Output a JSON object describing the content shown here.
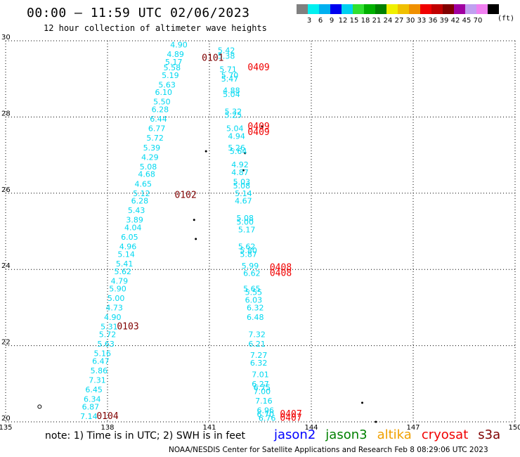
{
  "header": {
    "title": "00:00 — 11:59 UTC 02/06/2023",
    "subtitle": "12 hour collection of altimeter wave heights"
  },
  "colorbar": {
    "colors": [
      "#808080",
      "#00f0f0",
      "#00b0f0",
      "#0000f0",
      "#00d0f0",
      "#30e030",
      "#00b000",
      "#008000",
      "#f0f000",
      "#f0c000",
      "#f09000",
      "#f00000",
      "#c00000",
      "#800000",
      "#a000a0",
      "#c0a0f0",
      "#f080f0",
      "#000000"
    ],
    "labels": [
      "3",
      "6",
      "9",
      "12",
      "15",
      "18",
      "21",
      "24",
      "27",
      "30",
      "33",
      "36",
      "39",
      "42",
      "45",
      "70"
    ],
    "units": "(ft)"
  },
  "chart_data": {
    "type": "scatter",
    "title": "00:00 — 11:59 UTC 02/06/2023",
    "subtitle": "12 hour collection of altimeter wave heights",
    "xlim": [
      135,
      150
    ],
    "ylim": [
      20,
      30
    ],
    "x_ticks": [
      "135",
      "138",
      "141",
      "144",
      "147",
      "150"
    ],
    "y_ticks": [
      "20",
      "22",
      "24",
      "26",
      "28",
      "30"
    ],
    "grid": true,
    "legend_position": "bottom",
    "series": [
      {
        "name": "jason2",
        "color": "#00d8f0",
        "points": [
          {
            "x": 140.1,
            "y": 29.9,
            "label": "4.90"
          },
          {
            "x": 140.0,
            "y": 29.65,
            "label": "4.89"
          },
          {
            "x": 139.95,
            "y": 29.45,
            "label": "5.17"
          },
          {
            "x": 139.9,
            "y": 29.3,
            "label": "5.58"
          },
          {
            "x": 139.85,
            "y": 29.1,
            "label": "5.19"
          },
          {
            "x": 139.75,
            "y": 28.85,
            "label": "5.63"
          },
          {
            "x": 139.65,
            "y": 28.65,
            "label": "6.10"
          },
          {
            "x": 139.6,
            "y": 28.4,
            "label": "5.50"
          },
          {
            "x": 139.55,
            "y": 28.2,
            "label": "6.28"
          },
          {
            "x": 139.5,
            "y": 27.95,
            "label": "6.44"
          },
          {
            "x": 139.45,
            "y": 27.7,
            "label": "6.77"
          },
          {
            "x": 139.4,
            "y": 27.45,
            "label": "5.72"
          },
          {
            "x": 139.3,
            "y": 27.2,
            "label": "5.39"
          },
          {
            "x": 139.25,
            "y": 26.95,
            "label": "4.29"
          },
          {
            "x": 139.2,
            "y": 26.7,
            "label": "5.08"
          },
          {
            "x": 139.15,
            "y": 26.5,
            "label": "4.68"
          },
          {
            "x": 139.05,
            "y": 26.25,
            "label": "4.65"
          },
          {
            "x": 139.0,
            "y": 26.0,
            "label": "5.12"
          },
          {
            "x": 138.95,
            "y": 25.8,
            "label": "6.28"
          },
          {
            "x": 138.85,
            "y": 25.55,
            "label": "5.43"
          },
          {
            "x": 138.8,
            "y": 25.3,
            "label": "3.89"
          },
          {
            "x": 138.75,
            "y": 25.1,
            "label": "4.04"
          },
          {
            "x": 138.65,
            "y": 24.85,
            "label": "6.05"
          },
          {
            "x": 138.6,
            "y": 24.6,
            "label": "4.96"
          },
          {
            "x": 138.55,
            "y": 24.4,
            "label": "5.14"
          },
          {
            "x": 138.5,
            "y": 24.15,
            "label": "5.41"
          },
          {
            "x": 138.45,
            "y": 23.95,
            "label": "5.62"
          },
          {
            "x": 138.35,
            "y": 23.7,
            "label": "4.79"
          },
          {
            "x": 138.3,
            "y": 23.5,
            "label": "5.90"
          },
          {
            "x": 138.25,
            "y": 23.25,
            "label": "5.00"
          },
          {
            "x": 138.2,
            "y": 23.0,
            "label": "4.73"
          },
          {
            "x": 138.15,
            "y": 22.75,
            "label": "4.90"
          },
          {
            "x": 138.05,
            "y": 22.5,
            "label": "5.31"
          },
          {
            "x": 138.0,
            "y": 22.3,
            "label": "5.72"
          },
          {
            "x": 137.95,
            "y": 22.05,
            "label": "5.63"
          },
          {
            "x": 137.85,
            "y": 21.8,
            "label": "5.16"
          },
          {
            "x": 137.8,
            "y": 21.6,
            "label": "6.47"
          },
          {
            "x": 137.75,
            "y": 21.35,
            "label": "5.86"
          },
          {
            "x": 137.7,
            "y": 21.1,
            "label": "7.31"
          },
          {
            "x": 137.6,
            "y": 20.85,
            "label": "6.45"
          },
          {
            "x": 137.55,
            "y": 20.6,
            "label": "6.34"
          },
          {
            "x": 137.5,
            "y": 20.4,
            "label": "6.87"
          },
          {
            "x": 137.45,
            "y": 20.15,
            "label": "7.14"
          }
        ]
      },
      {
        "name": "jason2",
        "color": "#00d8f0",
        "points": [
          {
            "x": 141.5,
            "y": 29.75,
            "label": "5.42"
          },
          {
            "x": 141.5,
            "y": 29.6,
            "label": "5.38"
          },
          {
            "x": 141.55,
            "y": 29.25,
            "label": "5.71"
          },
          {
            "x": 141.6,
            "y": 29.1,
            "label": "5.70"
          },
          {
            "x": 141.6,
            "y": 29.0,
            "label": "5.47"
          },
          {
            "x": 141.65,
            "y": 28.7,
            "label": "4.88"
          },
          {
            "x": 141.65,
            "y": 28.6,
            "label": "5.04"
          },
          {
            "x": 141.7,
            "y": 28.15,
            "label": "5.32"
          },
          {
            "x": 141.7,
            "y": 28.05,
            "label": "5.25"
          },
          {
            "x": 141.75,
            "y": 27.7,
            "label": "5.04"
          },
          {
            "x": 141.8,
            "y": 27.5,
            "label": "4.94"
          },
          {
            "x": 141.8,
            "y": 27.2,
            "label": "5.26"
          },
          {
            "x": 141.85,
            "y": 27.1,
            "label": "5.64"
          },
          {
            "x": 141.9,
            "y": 26.75,
            "label": "4.92"
          },
          {
            "x": 141.9,
            "y": 26.55,
            "label": "4.87"
          },
          {
            "x": 141.95,
            "y": 26.3,
            "label": "5.03"
          },
          {
            "x": 141.95,
            "y": 26.2,
            "label": "5.08"
          },
          {
            "x": 142.0,
            "y": 26.0,
            "label": "5.14"
          },
          {
            "x": 142.0,
            "y": 25.8,
            "label": "4.67"
          },
          {
            "x": 142.05,
            "y": 25.35,
            "label": "5.08"
          },
          {
            "x": 142.05,
            "y": 25.25,
            "label": "5.00"
          },
          {
            "x": 142.1,
            "y": 25.05,
            "label": "5.17"
          },
          {
            "x": 142.1,
            "y": 24.6,
            "label": "5.62"
          },
          {
            "x": 142.15,
            "y": 24.5,
            "label": "5.80"
          },
          {
            "x": 142.15,
            "y": 24.4,
            "label": "5.87"
          },
          {
            "x": 142.2,
            "y": 24.1,
            "label": "5.99"
          },
          {
            "x": 142.25,
            "y": 23.9,
            "label": "6.62"
          },
          {
            "x": 142.25,
            "y": 23.5,
            "label": "5.65"
          },
          {
            "x": 142.3,
            "y": 23.4,
            "label": "5.55"
          },
          {
            "x": 142.3,
            "y": 23.2,
            "label": "6.03"
          },
          {
            "x": 142.35,
            "y": 23.0,
            "label": "6.32"
          },
          {
            "x": 142.35,
            "y": 22.75,
            "label": "6.48"
          },
          {
            "x": 142.4,
            "y": 22.3,
            "label": "7.32"
          },
          {
            "x": 142.4,
            "y": 22.05,
            "label": "6.21"
          },
          {
            "x": 142.45,
            "y": 21.75,
            "label": "7.27"
          },
          {
            "x": 142.45,
            "y": 21.55,
            "label": "6.32"
          },
          {
            "x": 142.5,
            "y": 21.25,
            "label": "7.01"
          },
          {
            "x": 142.5,
            "y": 21.0,
            "label": "6.27"
          },
          {
            "x": 142.55,
            "y": 20.9,
            "label": "6.75"
          },
          {
            "x": 142.55,
            "y": 20.8,
            "label": "7.00"
          },
          {
            "x": 142.6,
            "y": 20.55,
            "label": "7.16"
          },
          {
            "x": 142.65,
            "y": 20.3,
            "label": "6.96"
          },
          {
            "x": 142.65,
            "y": 20.2,
            "label": "6.70"
          },
          {
            "x": 142.7,
            "y": 20.1,
            "label": "6.76"
          }
        ]
      }
    ],
    "time_labels": [
      {
        "x": 141.1,
        "y": 29.55,
        "label": "0101",
        "color": "#800000"
      },
      {
        "x": 142.45,
        "y": 29.3,
        "label": "0409",
        "color": "#f00000"
      },
      {
        "x": 142.45,
        "y": 27.75,
        "label": "0409",
        "color": "#f00000"
      },
      {
        "x": 142.45,
        "y": 27.6,
        "label": "0409",
        "color": "#f00000"
      },
      {
        "x": 140.3,
        "y": 25.95,
        "label": "0102",
        "color": "#800000"
      },
      {
        "x": 143.1,
        "y": 24.05,
        "label": "0408",
        "color": "#f00000"
      },
      {
        "x": 143.1,
        "y": 23.9,
        "label": "0408",
        "color": "#f00000"
      },
      {
        "x": 138.6,
        "y": 22.5,
        "label": "0103",
        "color": "#800000"
      },
      {
        "x": 143.4,
        "y": 20.2,
        "label": "0407",
        "color": "#f00000"
      },
      {
        "x": 143.4,
        "y": 20.1,
        "label": "0407",
        "color": "#f00000"
      },
      {
        "x": 138.0,
        "y": 20.15,
        "label": "0104",
        "color": "#800000"
      }
    ],
    "land_marks": [
      {
        "x": 140.9,
        "y": 27.1,
        "kind": "dot"
      },
      {
        "x": 142.05,
        "y": 27.05,
        "kind": "dot"
      },
      {
        "x": 142.0,
        "y": 26.6,
        "kind": "dot"
      },
      {
        "x": 140.55,
        "y": 25.3,
        "kind": "dot"
      },
      {
        "x": 140.6,
        "y": 24.8,
        "kind": "dot"
      },
      {
        "x": 142.55,
        "y": 27.75,
        "kind": "dot"
      },
      {
        "x": 145.5,
        "y": 20.5,
        "kind": "dot"
      },
      {
        "x": 145.9,
        "y": 20.0,
        "kind": "dot"
      },
      {
        "x": 136.0,
        "y": 20.4,
        "kind": "ring"
      }
    ]
  },
  "footer": {
    "note": "note: 1) Time is in UTC; 2) SWH is in feet",
    "legend": [
      {
        "label": "jason2",
        "color": "#0000ff"
      },
      {
        "label": "jason3",
        "color": "#008000"
      },
      {
        "label": "altika",
        "color": "#f0a000"
      },
      {
        "label": "cryosat",
        "color": "#f00000"
      },
      {
        "label": "s3a",
        "color": "#800000"
      }
    ],
    "credit": "NOAA/NESDIS Center for Satellite Applications and Research    Feb  8 08:29:06 UTC 2023"
  }
}
